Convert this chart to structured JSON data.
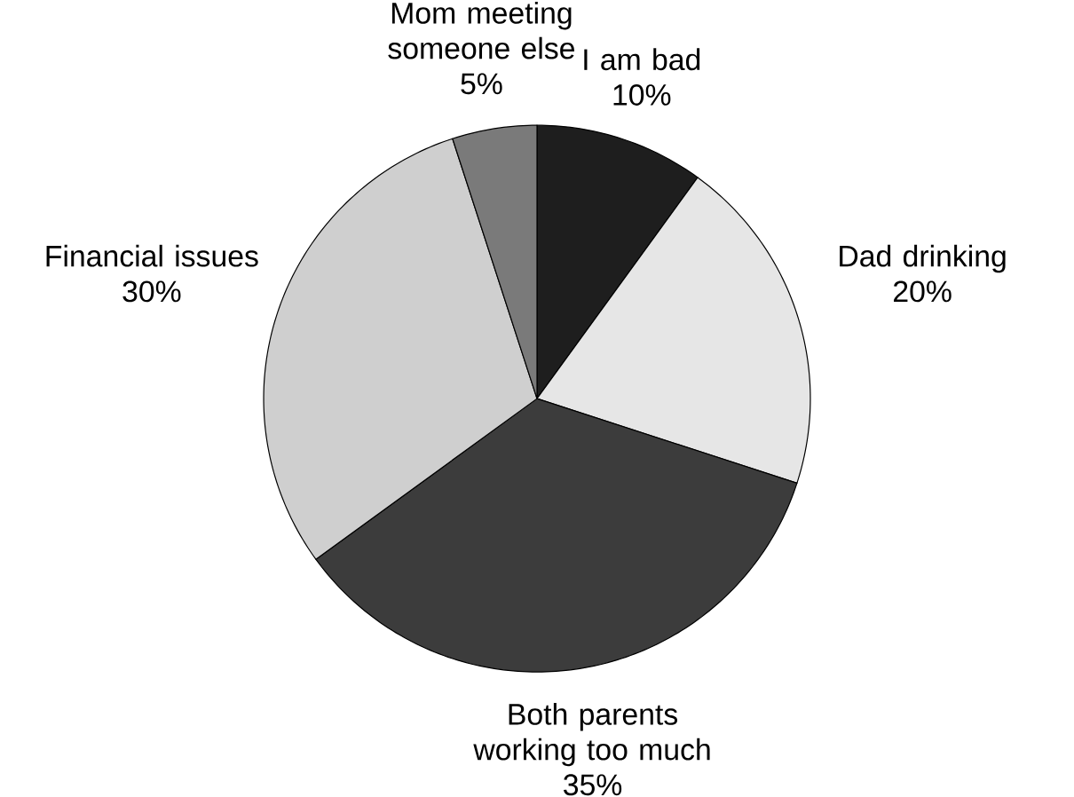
{
  "chart_data": {
    "type": "pie",
    "categories": [
      "I am bad",
      "Dad drinking",
      "Both parents working too much",
      "Financial issues",
      "Mom meeting someone else"
    ],
    "values": [
      10,
      20,
      35,
      30,
      5
    ],
    "value_labels": [
      "10%",
      "20%",
      "35%",
      "30%",
      "5%"
    ],
    "colors": [
      "#1e1e1e",
      "#e6e6e6",
      "#3c3c3c",
      "#cfcfcf",
      "#7a7a7a"
    ]
  }
}
